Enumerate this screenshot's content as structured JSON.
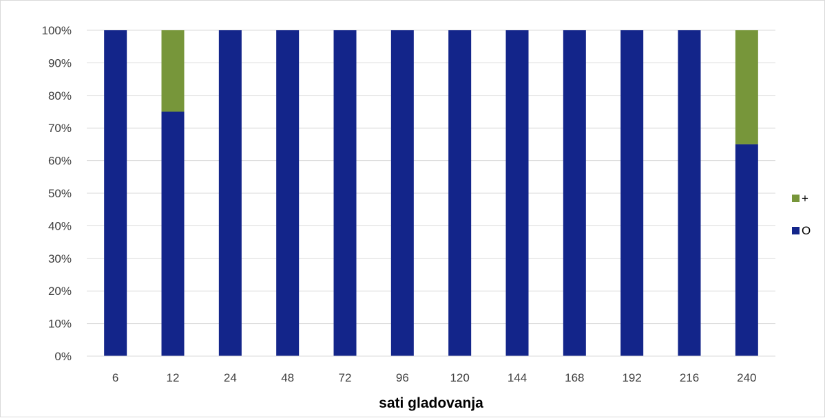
{
  "chart_data": {
    "type": "bar",
    "stacked": true,
    "percent": true,
    "categories": [
      "6",
      "12",
      "24",
      "48",
      "72",
      "96",
      "120",
      "144",
      "168",
      "192",
      "216",
      "240"
    ],
    "series": [
      {
        "name": "O",
        "color": "#13258a",
        "values": [
          100,
          75,
          100,
          100,
          100,
          100,
          100,
          100,
          100,
          100,
          100,
          65
        ]
      },
      {
        "name": "+",
        "color": "#77963a",
        "values": [
          0,
          25,
          0,
          0,
          0,
          0,
          0,
          0,
          0,
          0,
          0,
          35
        ]
      }
    ],
    "title": "",
    "xlabel": "sati gladovanja",
    "ylabel": "",
    "ylim": [
      0,
      100
    ],
    "yticks": [
      "0%",
      "10%",
      "20%",
      "30%",
      "40%",
      "50%",
      "60%",
      "70%",
      "80%",
      "90%",
      "100%"
    ],
    "grid": true,
    "legend_position": "right",
    "legend_order": [
      "+",
      "O"
    ]
  }
}
